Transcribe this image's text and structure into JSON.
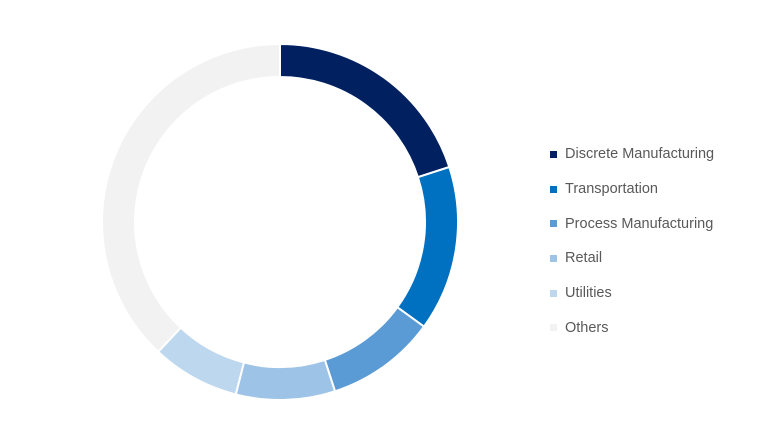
{
  "chart_data": {
    "type": "pie",
    "variant": "donut",
    "title": "",
    "categories": [
      "Discrete Manufacturing",
      "Transportation",
      "Process Manufacturing",
      "Retail",
      "Utilities",
      "Others"
    ],
    "values": [
      20,
      15,
      10,
      9,
      8,
      38
    ],
    "unit": "%",
    "colors": [
      "#002060",
      "#0070C0",
      "#5B9BD5",
      "#9DC3E6",
      "#BDD7EE",
      "#F2F2F2"
    ],
    "legend": "right",
    "start_angle": "12 o'clock",
    "direction": "clockwise"
  }
}
